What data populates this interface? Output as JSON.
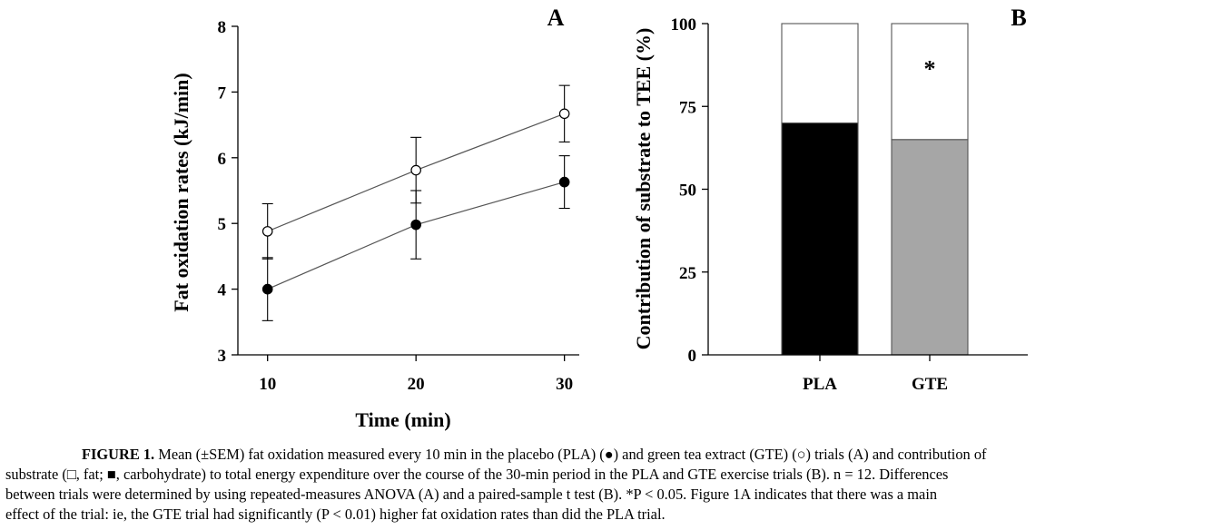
{
  "chart_data": [
    {
      "panel": "A",
      "type": "line",
      "xlabel": "Time (min)",
      "ylabel": "Fat oxidation rates (kJ/min)",
      "x": [
        10,
        20,
        30
      ],
      "xticks": [
        "10",
        "20",
        "30"
      ],
      "xlim": [
        8,
        31
      ],
      "ylim": [
        3,
        8
      ],
      "yticks": [
        "3",
        "4",
        "5",
        "6",
        "7",
        "8"
      ],
      "grid": false,
      "series": [
        {
          "marker": "filled-circle",
          "values": [
            4.0,
            4.98,
            5.63
          ],
          "sem": [
            0.48,
            0.52,
            0.4
          ]
        },
        {
          "marker": "open-circle",
          "values": [
            4.88,
            5.81,
            6.67
          ],
          "sem": [
            0.42,
            0.5,
            0.43
          ]
        }
      ]
    },
    {
      "panel": "B",
      "type": "bar",
      "stacked": true,
      "ylabel": "Contribution of substrate to TEE (%)",
      "categories": [
        "PLA",
        "GTE"
      ],
      "ylim": [
        0,
        100
      ],
      "yticks": [
        "0",
        "25",
        "50",
        "75",
        "100"
      ],
      "grid": false,
      "series": [
        {
          "segment": "carbohydrate",
          "values": [
            70,
            65
          ],
          "colors": [
            "#000000",
            "#a6a6a6"
          ]
        },
        {
          "segment": "fat",
          "values": [
            30,
            35
          ],
          "colors": [
            "#ffffff",
            "#ffffff"
          ]
        }
      ],
      "annotation": {
        "text": "*",
        "category": "GTE",
        "segment": "fat"
      }
    }
  ],
  "caption": {
    "label": "FIGURE 1.",
    "lines": [
      "Mean (±SEM) fat oxidation measured every 10 min in the placebo (PLA) (●) and green tea extract (GTE) (○) trials (A) and contribution of",
      "substrate (□, fat; ■, carbohydrate) to total energy expenditure over the course of the 30-min period in the PLA and GTE exercise trials (B). n = 12. Differences",
      "between trials were determined by using repeated-measures ANOVA (A) and a paired-sample t test (B). *P < 0.05. Figure 1A indicates that there was a main",
      "effect of the trial: ie, the GTE trial had significantly (P < 0.01) higher fat oxidation rates than did the PLA trial."
    ]
  }
}
